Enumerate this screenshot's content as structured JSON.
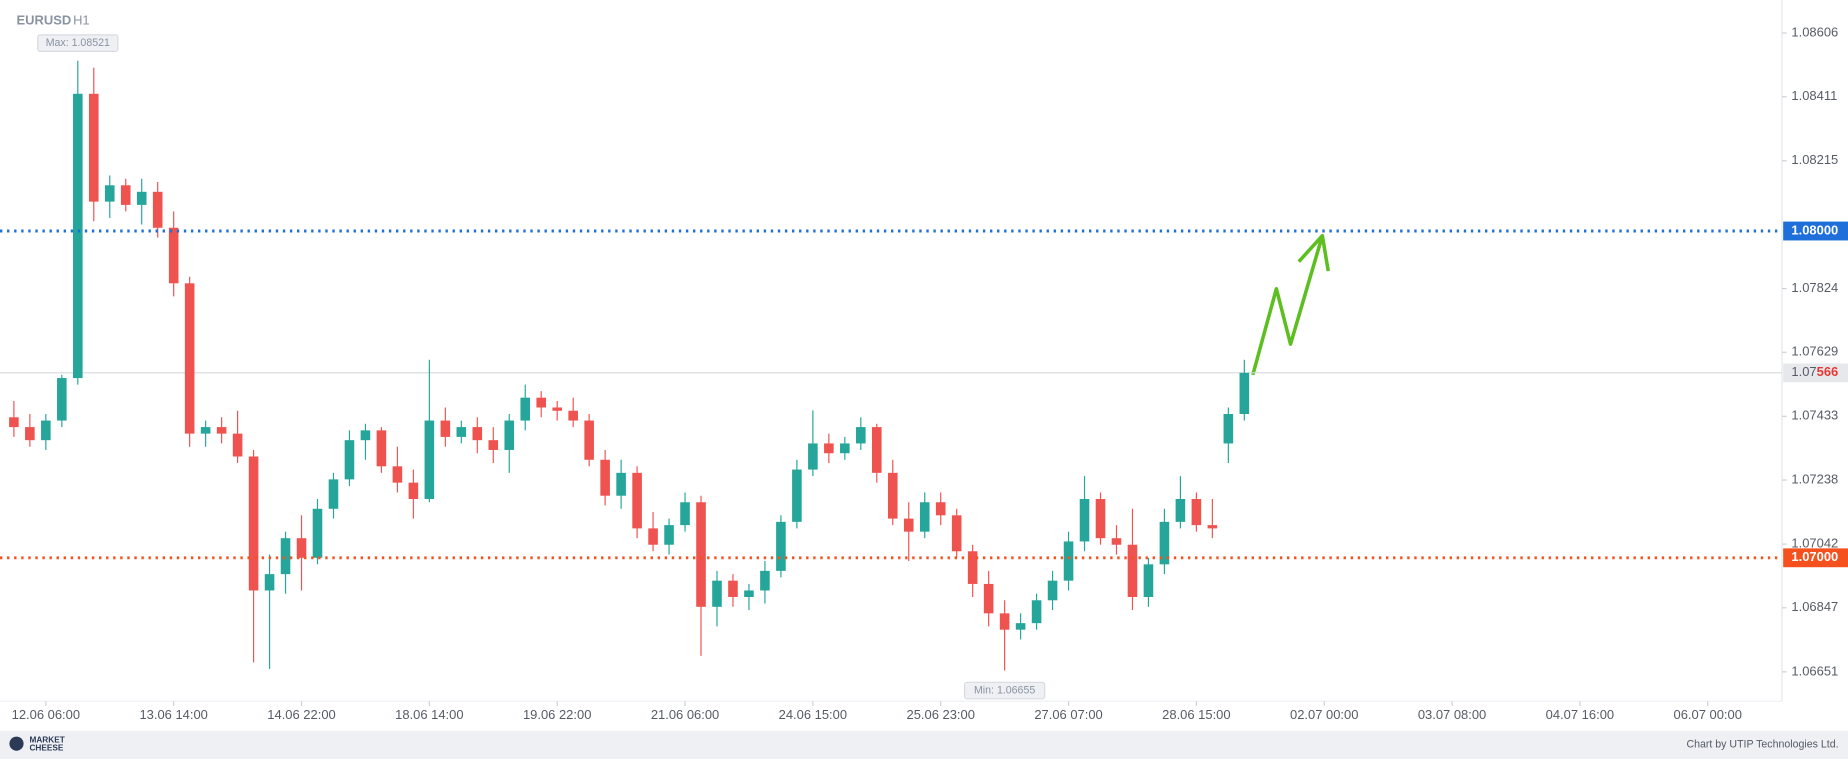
{
  "chart_data": {
    "type": "candlestick",
    "title": "EURUSD",
    "subtitle": "H1",
    "up_color": "#26a69a",
    "down_color": "#ef5350",
    "candles": [
      [
        1.0743,
        1.0748,
        1.0737,
        1.074
      ],
      [
        1.074,
        1.0744,
        1.0734,
        1.0736
      ],
      [
        1.0736,
        1.0744,
        1.0733,
        1.0742
      ],
      [
        1.0742,
        1.0756,
        1.074,
        1.0755
      ],
      [
        1.0755,
        1.08521,
        1.0753,
        1.0842
      ],
      [
        1.0842,
        1.085,
        1.0803,
        1.0809
      ],
      [
        1.0809,
        1.0817,
        1.0804,
        1.0814
      ],
      [
        1.0814,
        1.0816,
        1.0806,
        1.0808
      ],
      [
        1.0808,
        1.0816,
        1.0802,
        1.0812
      ],
      [
        1.0812,
        1.0815,
        1.0798,
        1.0801
      ],
      [
        1.0801,
        1.0806,
        1.078,
        1.0784
      ],
      [
        1.0784,
        1.0786,
        1.0734,
        1.0738
      ],
      [
        1.0738,
        1.0742,
        1.0734,
        1.074
      ],
      [
        1.074,
        1.0743,
        1.0735,
        1.0738
      ],
      [
        1.0738,
        1.0745,
        1.0729,
        1.0731
      ],
      [
        1.0731,
        1.0733,
        1.0668,
        1.069
      ],
      [
        1.069,
        1.0701,
        1.0666,
        1.0695
      ],
      [
        1.0695,
        1.0708,
        1.0689,
        1.0706
      ],
      [
        1.0706,
        1.0713,
        1.069,
        1.07
      ],
      [
        1.07,
        1.0718,
        1.0698,
        1.0715
      ],
      [
        1.0715,
        1.0726,
        1.0712,
        1.0724
      ],
      [
        1.0724,
        1.0739,
        1.0722,
        1.0736
      ],
      [
        1.0736,
        1.0741,
        1.073,
        1.0739
      ],
      [
        1.0739,
        1.074,
        1.0726,
        1.0728
      ],
      [
        1.0728,
        1.0734,
        1.072,
        1.0723
      ],
      [
        1.0723,
        1.0727,
        1.0712,
        1.0718
      ],
      [
        1.0718,
        1.07606,
        1.0717,
        1.0742
      ],
      [
        1.0742,
        1.0746,
        1.0734,
        1.0737
      ],
      [
        1.0737,
        1.0742,
        1.0735,
        1.074
      ],
      [
        1.074,
        1.0743,
        1.0732,
        1.0736
      ],
      [
        1.0736,
        1.074,
        1.0729,
        1.0733
      ],
      [
        1.0733,
        1.0744,
        1.0726,
        1.0742
      ],
      [
        1.0742,
        1.0753,
        1.0739,
        1.0749
      ],
      [
        1.0749,
        1.0751,
        1.0743,
        1.0746
      ],
      [
        1.0746,
        1.0748,
        1.0742,
        1.0745
      ],
      [
        1.0745,
        1.0749,
        1.074,
        1.0742
      ],
      [
        1.0742,
        1.0744,
        1.0728,
        1.073
      ],
      [
        1.073,
        1.0733,
        1.0716,
        1.0719
      ],
      [
        1.0719,
        1.073,
        1.0715,
        1.0726
      ],
      [
        1.0726,
        1.0728,
        1.0706,
        1.0709
      ],
      [
        1.0709,
        1.0714,
        1.0702,
        1.0704
      ],
      [
        1.0704,
        1.0712,
        1.0701,
        1.071
      ],
      [
        1.071,
        1.072,
        1.0708,
        1.0717
      ],
      [
        1.0717,
        1.0719,
        1.067,
        1.0685
      ],
      [
        1.0685,
        1.0696,
        1.0679,
        1.0693
      ],
      [
        1.0693,
        1.0695,
        1.0685,
        1.0688
      ],
      [
        1.0688,
        1.0692,
        1.0684,
        1.069
      ],
      [
        1.069,
        1.0699,
        1.0686,
        1.0696
      ],
      [
        1.0696,
        1.0713,
        1.0694,
        1.0711
      ],
      [
        1.0711,
        1.073,
        1.0709,
        1.0727
      ],
      [
        1.0727,
        1.07451,
        1.0725,
        1.0735
      ],
      [
        1.0735,
        1.0738,
        1.0729,
        1.0732
      ],
      [
        1.0732,
        1.0737,
        1.073,
        1.0735
      ],
      [
        1.0735,
        1.0743,
        1.0733,
        1.074
      ],
      [
        1.074,
        1.0741,
        1.0723,
        1.0726
      ],
      [
        1.0726,
        1.073,
        1.071,
        1.0712
      ],
      [
        1.0712,
        1.0717,
        1.0699,
        1.0708
      ],
      [
        1.0708,
        1.072,
        1.0706,
        1.0717
      ],
      [
        1.0717,
        1.072,
        1.071,
        1.0713
      ],
      [
        1.0713,
        1.0715,
        1.07,
        1.0702
      ],
      [
        1.0702,
        1.0704,
        1.0688,
        1.0692
      ],
      [
        1.0692,
        1.0696,
        1.0679,
        1.0683
      ],
      [
        1.0683,
        1.0687,
        1.06655,
        1.0678
      ],
      [
        1.0678,
        1.0683,
        1.0675,
        1.068
      ],
      [
        1.068,
        1.0689,
        1.0678,
        1.0687
      ],
      [
        1.0687,
        1.0696,
        1.0684,
        1.0693
      ],
      [
        1.0693,
        1.0708,
        1.069,
        1.0705
      ],
      [
        1.0705,
        1.0725,
        1.0702,
        1.0718
      ],
      [
        1.0718,
        1.072,
        1.0704,
        1.0706
      ],
      [
        1.0706,
        1.071,
        1.0701,
        1.0704
      ],
      [
        1.0704,
        1.0715,
        1.0684,
        1.0688
      ],
      [
        1.0688,
        1.07,
        1.0685,
        1.0698
      ],
      [
        1.0698,
        1.0715,
        1.0695,
        1.0711
      ],
      [
        1.0711,
        1.0725,
        1.0709,
        1.0718
      ],
      [
        1.0718,
        1.072,
        1.0708,
        1.071
      ],
      [
        1.071,
        1.0718,
        1.0706,
        1.0709
      ],
      [
        1.0735,
        1.0746,
        1.0729,
        1.0744
      ],
      [
        1.0744,
        1.07606,
        1.0742,
        1.07566
      ]
    ],
    "xlim": [
      -0.5,
      110.5
    ],
    "xticks": [
      {
        "value": 2,
        "label": "12.06 06:00"
      },
      {
        "value": 10,
        "label": "13.06 14:00"
      },
      {
        "value": 18,
        "label": "14.06 22:00"
      },
      {
        "value": 26,
        "label": "18.06 14:00"
      },
      {
        "value": 34,
        "label": "19.06 22:00"
      },
      {
        "value": 42,
        "label": "21.06 06:00"
      },
      {
        "value": 50,
        "label": "24.06 15:00"
      },
      {
        "value": 58,
        "label": "25.06 23:00"
      },
      {
        "value": 66,
        "label": "27.06 07:00"
      },
      {
        "value": 74,
        "label": "28.06 15:00"
      },
      {
        "value": 82,
        "label": "02.07 00:00"
      },
      {
        "value": 90,
        "label": "03.07 08:00"
      },
      {
        "value": 98,
        "label": "04.07 16:00"
      },
      {
        "value": 106,
        "label": "06.07 00:00"
      }
    ],
    "ylim": [
      1.06561,
      1.08707
    ],
    "yticks": [
      1.08606,
      1.08411,
      1.08215,
      1.07824,
      1.07629,
      1.07433,
      1.07238,
      1.07042,
      1.06847,
      1.06651
    ],
    "levels": [
      {
        "value": 1.08,
        "label": "1.08000",
        "color": "#1e6fd9"
      },
      {
        "value": 1.07,
        "label": "1.07000",
        "color": "#f4511e"
      }
    ],
    "current_price": {
      "value": 1.07566,
      "label_parts": [
        "1.07",
        "566"
      ]
    },
    "max": {
      "value": 1.08521,
      "label": "Max: 1.08521"
    },
    "min": {
      "value": 1.06655,
      "label": "Min: 1.06655"
    },
    "logo": [
      "MARKET",
      "CHEESE"
    ],
    "credit": "Chart by UTIP Technologies Ltd."
  }
}
